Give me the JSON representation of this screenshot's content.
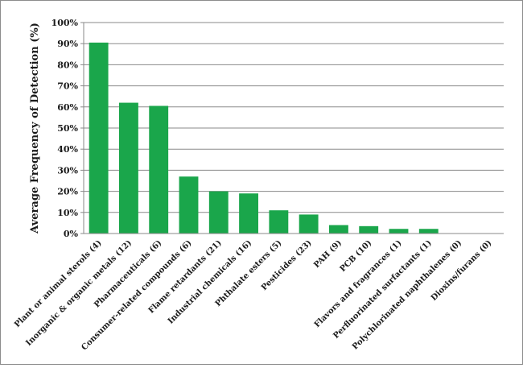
{
  "chart_data": {
    "type": "bar",
    "title": "",
    "xlabel": "",
    "ylabel": "Average Frequency of Detection (%)",
    "ylim": [
      0,
      100
    ],
    "yticks": [
      "0%",
      "10%",
      "20%",
      "30%",
      "40%",
      "50%",
      "60%",
      "70%",
      "80%",
      "90%",
      "100%"
    ],
    "grid": true,
    "bar_color": "#1aa64b",
    "categories": [
      "Plant or animal sterols (4)",
      "Inorganic & organic metals (12)",
      "Pharmaceuticals (6)",
      "Consumer-related compounds (6)",
      "Flame retardants (21)",
      "Industrial chemicals (16)",
      "Phthalate esters (5)",
      "Pesticides (23)",
      "PAH (9)",
      "PCB (10)",
      "Flavors and fragrances (1)",
      "Perfluorinated surfactants (1)",
      "Polychlorinated naphthalenes (0)",
      "Dioxins/furans (0)"
    ],
    "values": [
      90.5,
      62,
      60.5,
      27,
      20,
      19,
      11,
      9,
      4,
      3.5,
      2.2,
      2.2,
      0,
      0
    ]
  }
}
